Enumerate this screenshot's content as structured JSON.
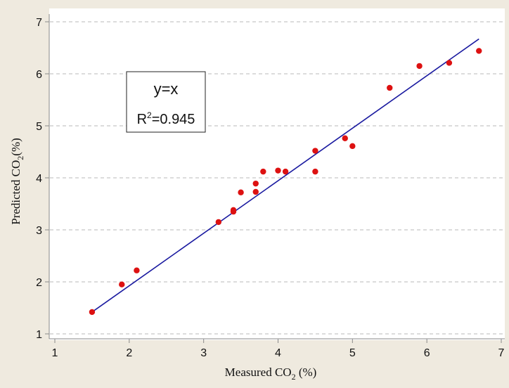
{
  "chart_data": {
    "type": "scatter",
    "title": "",
    "xlabel": {
      "prefix": "Measured CO",
      "subscript": "2",
      "suffix": " (%)"
    },
    "ylabel": {
      "prefix": "Predicted CO",
      "subscript": "2",
      "suffix": "(%)"
    },
    "xlim": [
      1,
      7
    ],
    "ylim": [
      1,
      7
    ],
    "xticks": [
      "1",
      "2",
      "3",
      "4",
      "5",
      "6",
      "7"
    ],
    "yticks": [
      "1",
      "2",
      "3",
      "4",
      "5",
      "6",
      "7"
    ],
    "grid": {
      "horizontal": "dashed",
      "vertical": "none"
    },
    "annotation": {
      "equation": "y=x",
      "r2_base": "R",
      "r2_exp": "2",
      "r2_value": "=0.945"
    },
    "fit_line": {
      "x": [
        1.5,
        6.7
      ],
      "y": [
        1.42,
        6.67
      ],
      "color": "#1a1aa0"
    },
    "points": {
      "color": "#dd1111",
      "x": [
        1.5,
        1.9,
        2.1,
        3.2,
        3.4,
        3.4,
        3.5,
        3.7,
        3.7,
        3.8,
        4.0,
        4.1,
        4.5,
        4.5,
        4.9,
        5.0,
        5.5,
        5.9,
        6.3,
        6.7
      ],
      "y": [
        1.42,
        1.95,
        2.22,
        3.15,
        3.35,
        3.38,
        3.72,
        3.73,
        3.89,
        4.12,
        4.14,
        4.12,
        4.52,
        4.12,
        4.76,
        4.61,
        5.73,
        6.15,
        6.21,
        6.44
      ]
    }
  }
}
